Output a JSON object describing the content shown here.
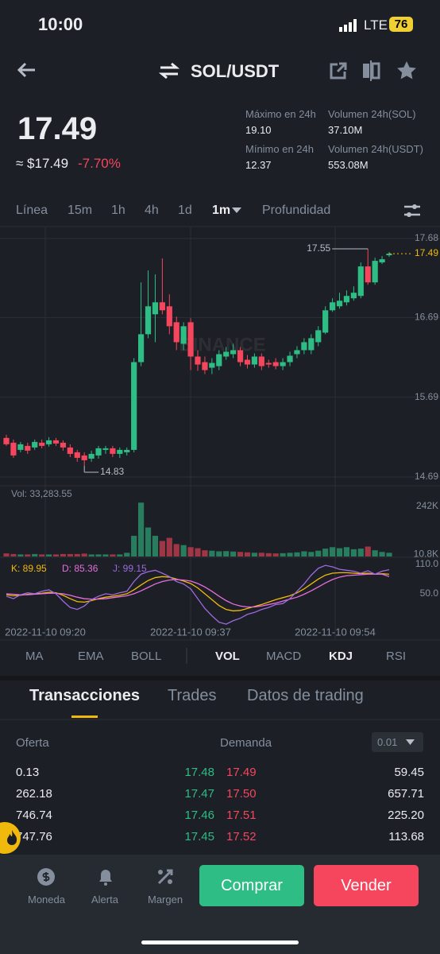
{
  "status": {
    "time": "10:00",
    "network": "LTE",
    "battery": "76"
  },
  "header": {
    "pair": "SOL/USDT"
  },
  "ticker": {
    "price": "17.49",
    "usd": "≈ $17.49",
    "change": "-7.70%",
    "stats": [
      {
        "label": "Máximo en 24h",
        "value": "19.10"
      },
      {
        "label": "Volumen 24h(SOL)",
        "value": "37.10M"
      },
      {
        "label": "Mínimo en 24h",
        "value": "12.37"
      },
      {
        "label": "Volumen 24h(USDT)",
        "value": "553.08M"
      }
    ]
  },
  "intervals": [
    "Línea",
    "15m",
    "1h",
    "4h",
    "1d",
    "1m",
    "Profundidad"
  ],
  "active_interval": 5,
  "chart": {
    "type": "candlestick",
    "ylim": [
      14.69,
      17.68
    ],
    "yticks": [
      17.68,
      16.69,
      15.69,
      14.69
    ],
    "open": [
      15.18,
      15.12,
      15.03,
      15.08,
      15.06,
      15.12,
      15.1,
      15.15,
      15.12,
      15.06,
      15.0,
      14.96,
      14.92,
      14.96,
      15.03,
      15.05,
      14.98,
      15.0,
      15.03,
      16.13,
      16.48,
      16.73,
      16.88,
      16.83,
      16.63,
      16.36,
      16.63,
      16.2,
      16.13,
      16.06,
      16.08,
      16.2,
      16.23,
      16.28,
      16.16,
      16.1,
      16.2,
      16.12,
      16.13,
      16.08,
      16.13,
      16.23,
      16.28,
      16.28,
      16.38,
      16.5,
      16.78,
      16.83,
      16.88,
      16.93,
      16.96,
      17.33,
      17.13,
      17.38,
      17.47
    ],
    "high": [
      15.22,
      15.16,
      15.13,
      15.12,
      15.16,
      15.16,
      15.19,
      15.18,
      15.15,
      15.1,
      15.03,
      15.0,
      15.02,
      15.08,
      15.08,
      15.08,
      15.06,
      15.06,
      16.18,
      17.13,
      17.28,
      17.23,
      17.43,
      16.98,
      16.7,
      16.63,
      16.68,
      16.28,
      16.2,
      16.18,
      16.28,
      16.32,
      16.36,
      16.32,
      16.22,
      16.24,
      16.24,
      16.16,
      16.18,
      16.18,
      16.26,
      16.33,
      16.43,
      16.48,
      16.58,
      16.83,
      16.93,
      17.0,
      17.03,
      17.08,
      17.38,
      17.55,
      17.44,
      17.46,
      17.51
    ],
    "low": [
      15.08,
      14.93,
      15.0,
      14.98,
      15.03,
      15.05,
      15.07,
      15.08,
      15.02,
      14.94,
      14.88,
      14.83,
      14.88,
      14.92,
      14.98,
      14.94,
      14.93,
      14.96,
      15.0,
      16.08,
      16.43,
      16.38,
      16.73,
      16.48,
      16.28,
      16.28,
      16.03,
      16.02,
      15.98,
      15.98,
      16.03,
      16.16,
      16.18,
      16.08,
      16.05,
      16.06,
      16.03,
      16.06,
      16.04,
      16.03,
      16.08,
      16.18,
      16.23,
      16.23,
      16.33,
      16.48,
      16.76,
      16.8,
      16.84,
      16.9,
      16.93,
      17.1,
      17.1,
      17.36,
      17.45
    ],
    "close": [
      15.1,
      14.96,
      15.1,
      15.02,
      15.13,
      15.08,
      15.15,
      15.11,
      15.06,
      14.98,
      14.93,
      14.9,
      14.98,
      15.05,
      15.05,
      14.98,
      15.03,
      15.03,
      16.13,
      16.48,
      16.83,
      16.88,
      16.78,
      16.58,
      16.38,
      16.58,
      16.2,
      16.1,
      16.03,
      16.12,
      16.23,
      16.26,
      16.28,
      16.13,
      16.1,
      16.2,
      16.08,
      16.1,
      16.08,
      16.13,
      16.21,
      16.28,
      16.38,
      16.43,
      16.53,
      16.78,
      16.88,
      16.9,
      16.96,
      17.0,
      17.33,
      17.13,
      17.4,
      17.42,
      17.49
    ],
    "up_color": "#2ebd85",
    "down_color": "#f6465d",
    "last_price": 17.49,
    "last_color": "#f0b90b",
    "high_label": 17.55,
    "low_label": 14.83,
    "watermark": "BINANCE",
    "x_labels": [
      "2022-11-10 09:20",
      "2022-11-10 09:37",
      "2022-11-10 09:54"
    ],
    "volume": {
      "label": "Vol: 33,283.55",
      "ylim": [
        0,
        280000
      ],
      "yticks": [
        {
          "value": 242000,
          "label": "242K"
        },
        {
          "value": 10800,
          "label": "10.8K"
        }
      ],
      "values": [
        15000,
        12000,
        10000,
        10000,
        12000,
        10000,
        10000,
        10000,
        12000,
        12000,
        12000,
        14000,
        10000,
        10000,
        10000,
        10000,
        10000,
        18000,
        100000,
        260000,
        140000,
        100000,
        75000,
        90000,
        60000,
        55000,
        45000,
        40000,
        30000,
        28000,
        25000,
        26000,
        24000,
        22000,
        20000,
        18000,
        18000,
        16000,
        15000,
        16000,
        18000,
        20000,
        25000,
        22000,
        28000,
        38000,
        45000,
        40000,
        45000,
        35000,
        38000,
        48000,
        30000,
        22000,
        18000
      ]
    },
    "kdj": {
      "ylim": [
        -20,
        118
      ],
      "yticks": [
        {
          "value": 110,
          "label": "110.0"
        },
        {
          "value": 50,
          "label": "50.0"
        }
      ],
      "series": [
        {
          "label": "K: 89.95",
          "color": "#f0b90b",
          "values": [
            48,
            46,
            47,
            49,
            50,
            51,
            53,
            52,
            47,
            40,
            34,
            33,
            36,
            40,
            43,
            45,
            47,
            50,
            58,
            68,
            77,
            83,
            85,
            84,
            80,
            76,
            71,
            62,
            50,
            38,
            26,
            18,
            15,
            16,
            20,
            24,
            28,
            33,
            38,
            42,
            46,
            52,
            60,
            70,
            80,
            88,
            92,
            93,
            93,
            92,
            91,
            92,
            90,
            91,
            89.95
          ]
        },
        {
          "label": "D: 85.36",
          "color": "#e86de0",
          "values": [
            50,
            49,
            48,
            48,
            49,
            50,
            51,
            51,
            50,
            47,
            43,
            40,
            39,
            39,
            40,
            42,
            44,
            46,
            50,
            56,
            63,
            70,
            75,
            78,
            79,
            78,
            76,
            71,
            64,
            55,
            45,
            36,
            29,
            25,
            23,
            23,
            25,
            28,
            31,
            35,
            39,
            43,
            49,
            56,
            64,
            72,
            79,
            84,
            87,
            88,
            89,
            90,
            90,
            90,
            85.36
          ]
        },
        {
          "label": "J: 99.15",
          "color": "#9c6ade",
          "values": [
            45,
            40,
            48,
            52,
            50,
            55,
            58,
            50,
            35,
            22,
            18,
            25,
            38,
            45,
            50,
            48,
            52,
            55,
            75,
            90,
            95,
            98,
            92,
            85,
            75,
            70,
            60,
            40,
            20,
            5,
            -8,
            -12,
            -5,
            0,
            8,
            12,
            18,
            22,
            28,
            30,
            40,
            55,
            70,
            88,
            102,
            108,
            105,
            100,
            98,
            96,
            92,
            97,
            90,
            96,
            99.15
          ]
        }
      ]
    }
  },
  "indicator_tabs": [
    "MA",
    "EMA",
    "BOLL",
    "VOL",
    "MACD",
    "KDJ",
    "RSI"
  ],
  "active_indicators": [
    3,
    5
  ],
  "tabs": [
    "Transacciones",
    "Trades",
    "Datos de trading"
  ],
  "order_book": {
    "bid_header": "Oferta",
    "ask_header": "Demanda",
    "step": "0.01",
    "rows": [
      [
        "0.13",
        "17.48",
        "17.49",
        "59.45"
      ],
      [
        "262.18",
        "17.47",
        "17.50",
        "657.71"
      ],
      [
        "746.74",
        "17.46",
        "17.51",
        "225.20"
      ],
      [
        "747.76",
        "17.45",
        "17.52",
        "113.68"
      ]
    ]
  },
  "bottom": {
    "nav": [
      "Moneda",
      "Alerta",
      "Margen"
    ],
    "buy": "Comprar",
    "sell": "Vender"
  }
}
